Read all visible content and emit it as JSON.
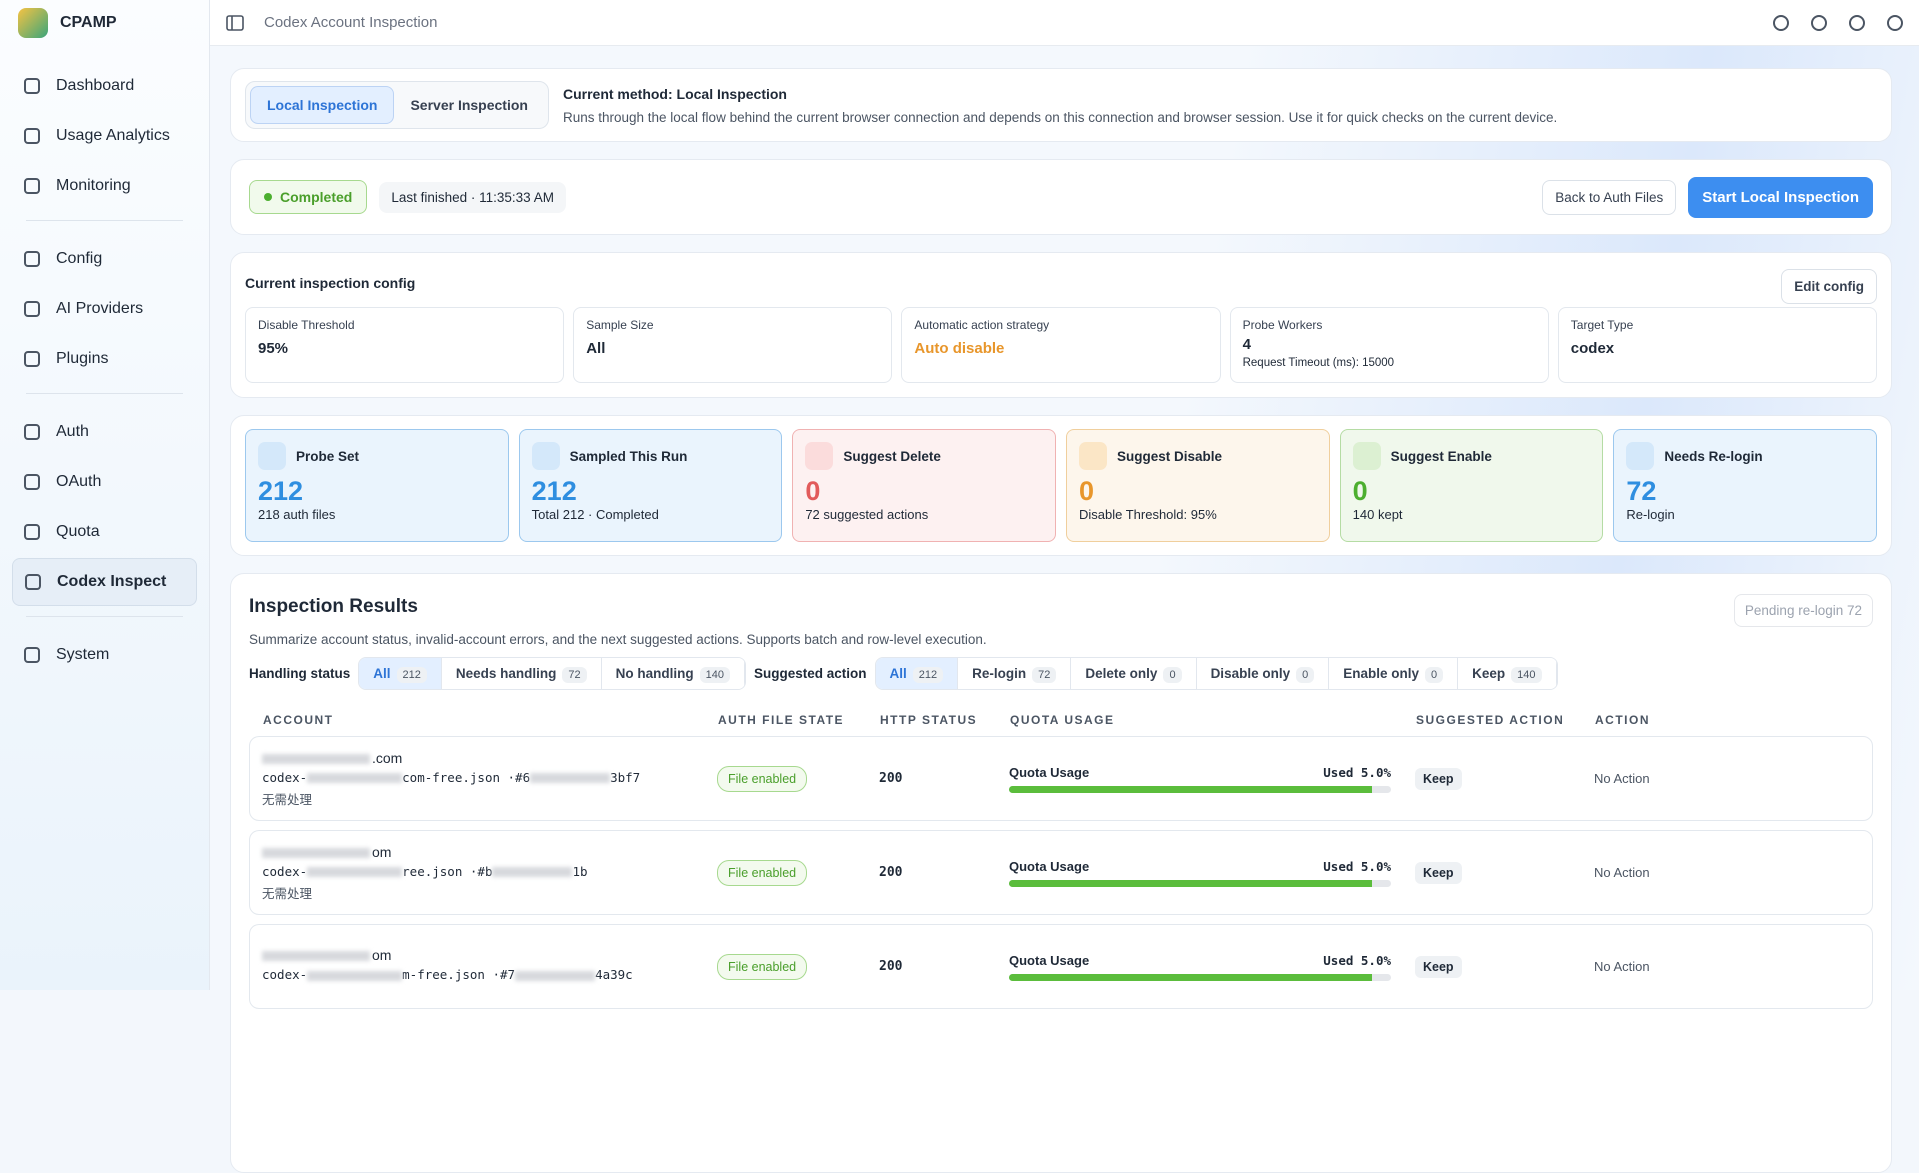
{
  "app": {
    "name": "CPAMP"
  },
  "nav": [
    [
      "Dashboard",
      "Usage Analytics",
      "Monitoring"
    ],
    [
      "Config",
      "AI Providers",
      "Plugins"
    ],
    [
      "Auth",
      "OAuth",
      "Quota",
      "Codex Inspect"
    ],
    [
      "System"
    ]
  ],
  "header": {
    "title": "Codex Account Inspection"
  },
  "method": {
    "tabs": [
      "Local Inspection",
      "Server Inspection"
    ],
    "current": "Current method: Local Inspection",
    "description": "Runs through the local flow behind the current browser connection and depends on this connection and browser session. Use it for quick checks on the current device."
  },
  "status": {
    "badge": "Completed",
    "last_finished": "Last finished · 11:35:33 AM",
    "back": "Back to Auth Files",
    "start": "Start Local Inspection"
  },
  "config": {
    "title": "Current inspection config",
    "edit": "Edit config",
    "cards": [
      {
        "label": "Disable Threshold",
        "value": "95%"
      },
      {
        "label": "Sample Size",
        "value": "All"
      },
      {
        "label": "Automatic action strategy",
        "value": "Auto disable"
      },
      {
        "label": "Probe Workers",
        "value": 4,
        "note": "Request Timeout (ms): 15000"
      },
      {
        "label": "Target Type",
        "value": "codex"
      }
    ]
  },
  "stats": [
    {
      "title": "Probe Set",
      "value": 212,
      "note": "218 auth files"
    },
    {
      "title": "Sampled This Run",
      "value": 212,
      "note": "Total 212 · Completed"
    },
    {
      "title": "Suggest Delete",
      "value": 0,
      "note": "72 suggested actions"
    },
    {
      "title": "Suggest Disable",
      "value": 0,
      "note": "Disable Threshold: 95%"
    },
    {
      "title": "Suggest Enable",
      "value": 0,
      "note": "140 kept"
    },
    {
      "title": "Needs Re-login",
      "value": 72,
      "note": "Re-login"
    }
  ],
  "results": {
    "title": "Inspection Results",
    "pending": "Pending re-login 72",
    "description": "Summarize account status, invalid-account errors, and the next suggested actions. Supports batch and row-level execution.",
    "handling_label": "Handling status",
    "handling": [
      {
        "label": "All",
        "count": 212
      },
      {
        "label": "Needs handling",
        "count": 72
      },
      {
        "label": "No handling",
        "count": 140
      }
    ],
    "action_label": "Suggested action",
    "actions": [
      {
        "label": "All",
        "count": 212
      },
      {
        "label": "Re-login",
        "count": 72
      },
      {
        "label": "Delete only",
        "count": 0
      },
      {
        "label": "Disable only",
        "count": 0
      },
      {
        "label": "Enable only",
        "count": 0
      },
      {
        "label": "Keep",
        "count": 140
      }
    ],
    "columns": [
      "ACCOUNT",
      "AUTH FILE STATE",
      "HTTP STATUS",
      "QUOTA USAGE",
      "SUGGESTED ACTION",
      "ACTION"
    ],
    "rows": [
      {
        "email": ".com",
        "file": [
          "codex-",
          "com-free.json ·",
          "#6",
          "3bf7"
        ],
        "note": "无需处理",
        "state": "File enabled",
        "http": 200,
        "quota_label": "Quota Usage",
        "quota_used": "Used 5.0%",
        "suggested": "Keep",
        "action": "No Action"
      },
      {
        "email": "om",
        "file": [
          "codex-",
          "ree.json ·",
          "#b",
          "1b"
        ],
        "note": "无需处理",
        "state": "File enabled",
        "http": 200,
        "quota_label": "Quota Usage",
        "quota_used": "Used 5.0%",
        "suggested": "Keep",
        "action": "No Action"
      },
      {
        "email": "om",
        "file": [
          "codex-",
          "m-free.json ·",
          "#7",
          "4a39c"
        ],
        "state": "File enabled",
        "http": 200,
        "quota_label": "Quota Usage",
        "quota_used": "Used 5.0%",
        "suggested": "Keep",
        "action": "No Action"
      }
    ]
  }
}
